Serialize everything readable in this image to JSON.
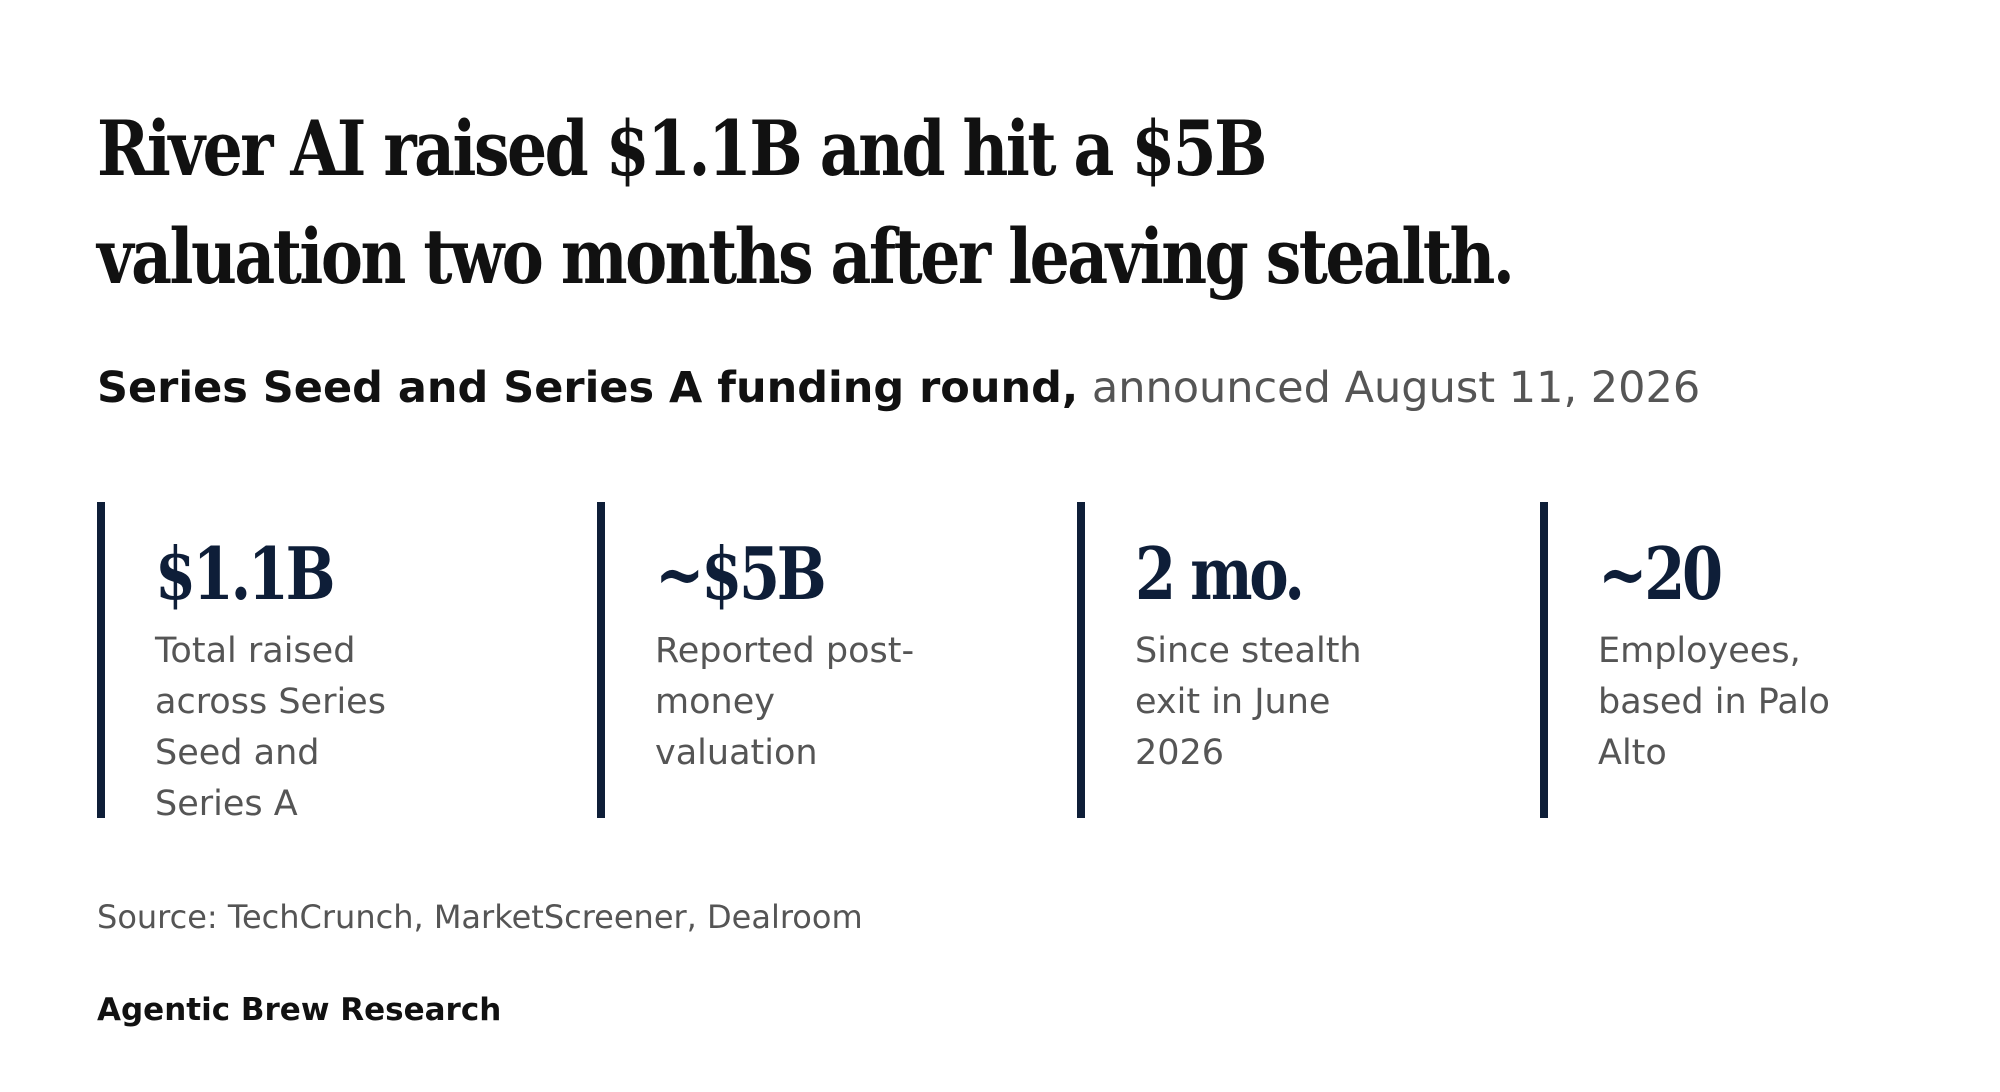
{
  "headline": "River AI raised $1.1B and hit a $5B valuation two months after leaving stealth.",
  "subheadline": {
    "strong": "Series Seed and Series A funding round,",
    "light": "announced August 11, 2026"
  },
  "stats": [
    {
      "value": "$1.1B",
      "label": "Total raised across Series Seed and Series A"
    },
    {
      "value": "~$5B",
      "label": "Reported post-money valuation"
    },
    {
      "value": "2 mo.",
      "label": "Since stealth exit in June 2026"
    },
    {
      "value": "~20",
      "label": "Employees, based in Palo Alto"
    }
  ],
  "source": "Source: TechCrunch, MarketScreener, Dealroom",
  "brand": "Agentic Brew Research",
  "colors": {
    "accent": "#0e1e38",
    "text": "#111111",
    "muted": "#555555",
    "background": "#ffffff"
  }
}
